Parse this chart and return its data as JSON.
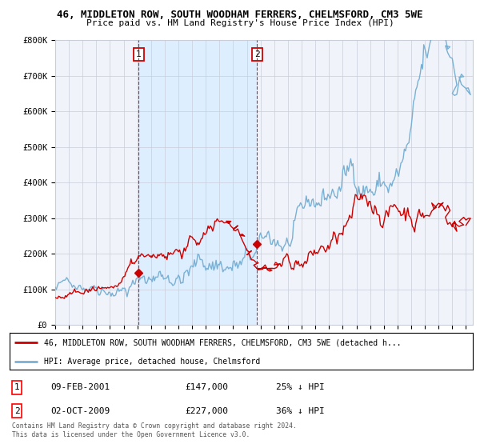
{
  "title": "46, MIDDLETON ROW, SOUTH WOODHAM FERRERS, CHELMSFORD, CM3 5WE",
  "subtitle": "Price paid vs. HM Land Registry's House Price Index (HPI)",
  "legend_property": "46, MIDDLETON ROW, SOUTH WOODHAM FERRERS, CHELMSFORD, CM3 5WE (detached h...",
  "legend_hpi": "HPI: Average price, detached house, Chelmsford",
  "annotation1": [
    "1",
    "09-FEB-2001",
    "£147,000",
    "25% ↓ HPI"
  ],
  "annotation2": [
    "2",
    "02-OCT-2009",
    "£227,000",
    "36% ↓ HPI"
  ],
  "footer": "Contains HM Land Registry data © Crown copyright and database right 2024.\nThis data is licensed under the Open Government Licence v3.0.",
  "property_color": "#cc0000",
  "hpi_color": "#7ab0d4",
  "vline_color": "#cc0000",
  "shade_color": "#ddeeff",
  "sale1_year": 2001.1,
  "sale2_year": 2009.75,
  "sale1_price": 147000,
  "sale2_price": 227000,
  "ylim": [
    0,
    800000
  ],
  "xlim_start": 1995.0,
  "xlim_end": 2025.5,
  "bg_color": "#f0f4fa",
  "grid_color": "#c8cdd8"
}
